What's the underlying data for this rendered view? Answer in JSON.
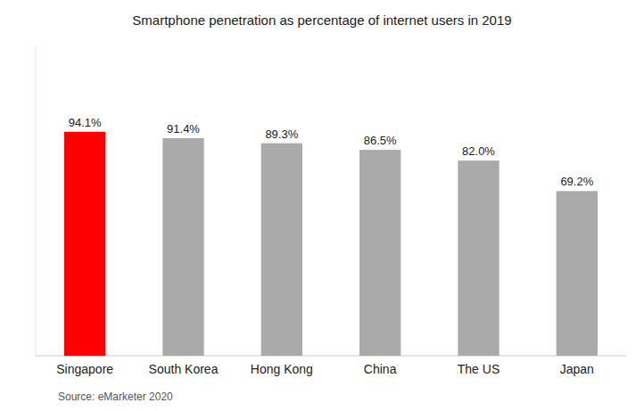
{
  "chart_data": {
    "type": "bar",
    "title": "Smartphone penetration as percentage of internet users in 2019",
    "categories": [
      "Singapore",
      "South Korea",
      "Hong Kong",
      "China",
      "The US",
      "Japan"
    ],
    "values": [
      94.1,
      91.4,
      89.3,
      86.5,
      82.0,
      69.2
    ],
    "value_labels": [
      "94.1%",
      "91.4%",
      "89.3%",
      "86.5%",
      "82.0%",
      "69.2%"
    ],
    "data_labels": true,
    "colors": [
      "#ff0000",
      "#aaaaaa",
      "#aaaaaa",
      "#aaaaaa",
      "#aaaaaa",
      "#aaaaaa"
    ],
    "ylim": [
      0,
      130
    ],
    "tick_labels": "x",
    "annotations": [
      "Source: eMarketer 2020"
    ]
  }
}
